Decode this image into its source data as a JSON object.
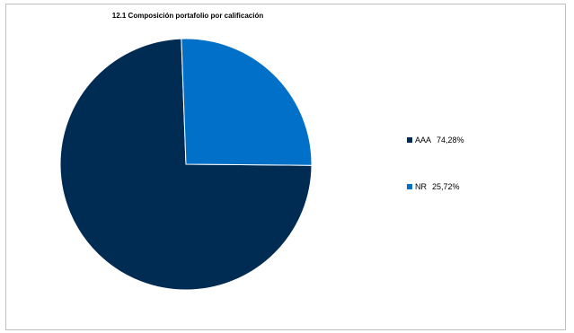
{
  "chart_data": {
    "type": "pie",
    "title": "12.1 Composición portafolio por calificación",
    "slices": [
      {
        "label": "AAA",
        "value": 74.28,
        "value_text": "74,28%",
        "color": "#002b52"
      },
      {
        "label": "NR",
        "value": 25.72,
        "value_text": "25,72%",
        "color": "#0070c8"
      }
    ],
    "legend_position": "right"
  }
}
